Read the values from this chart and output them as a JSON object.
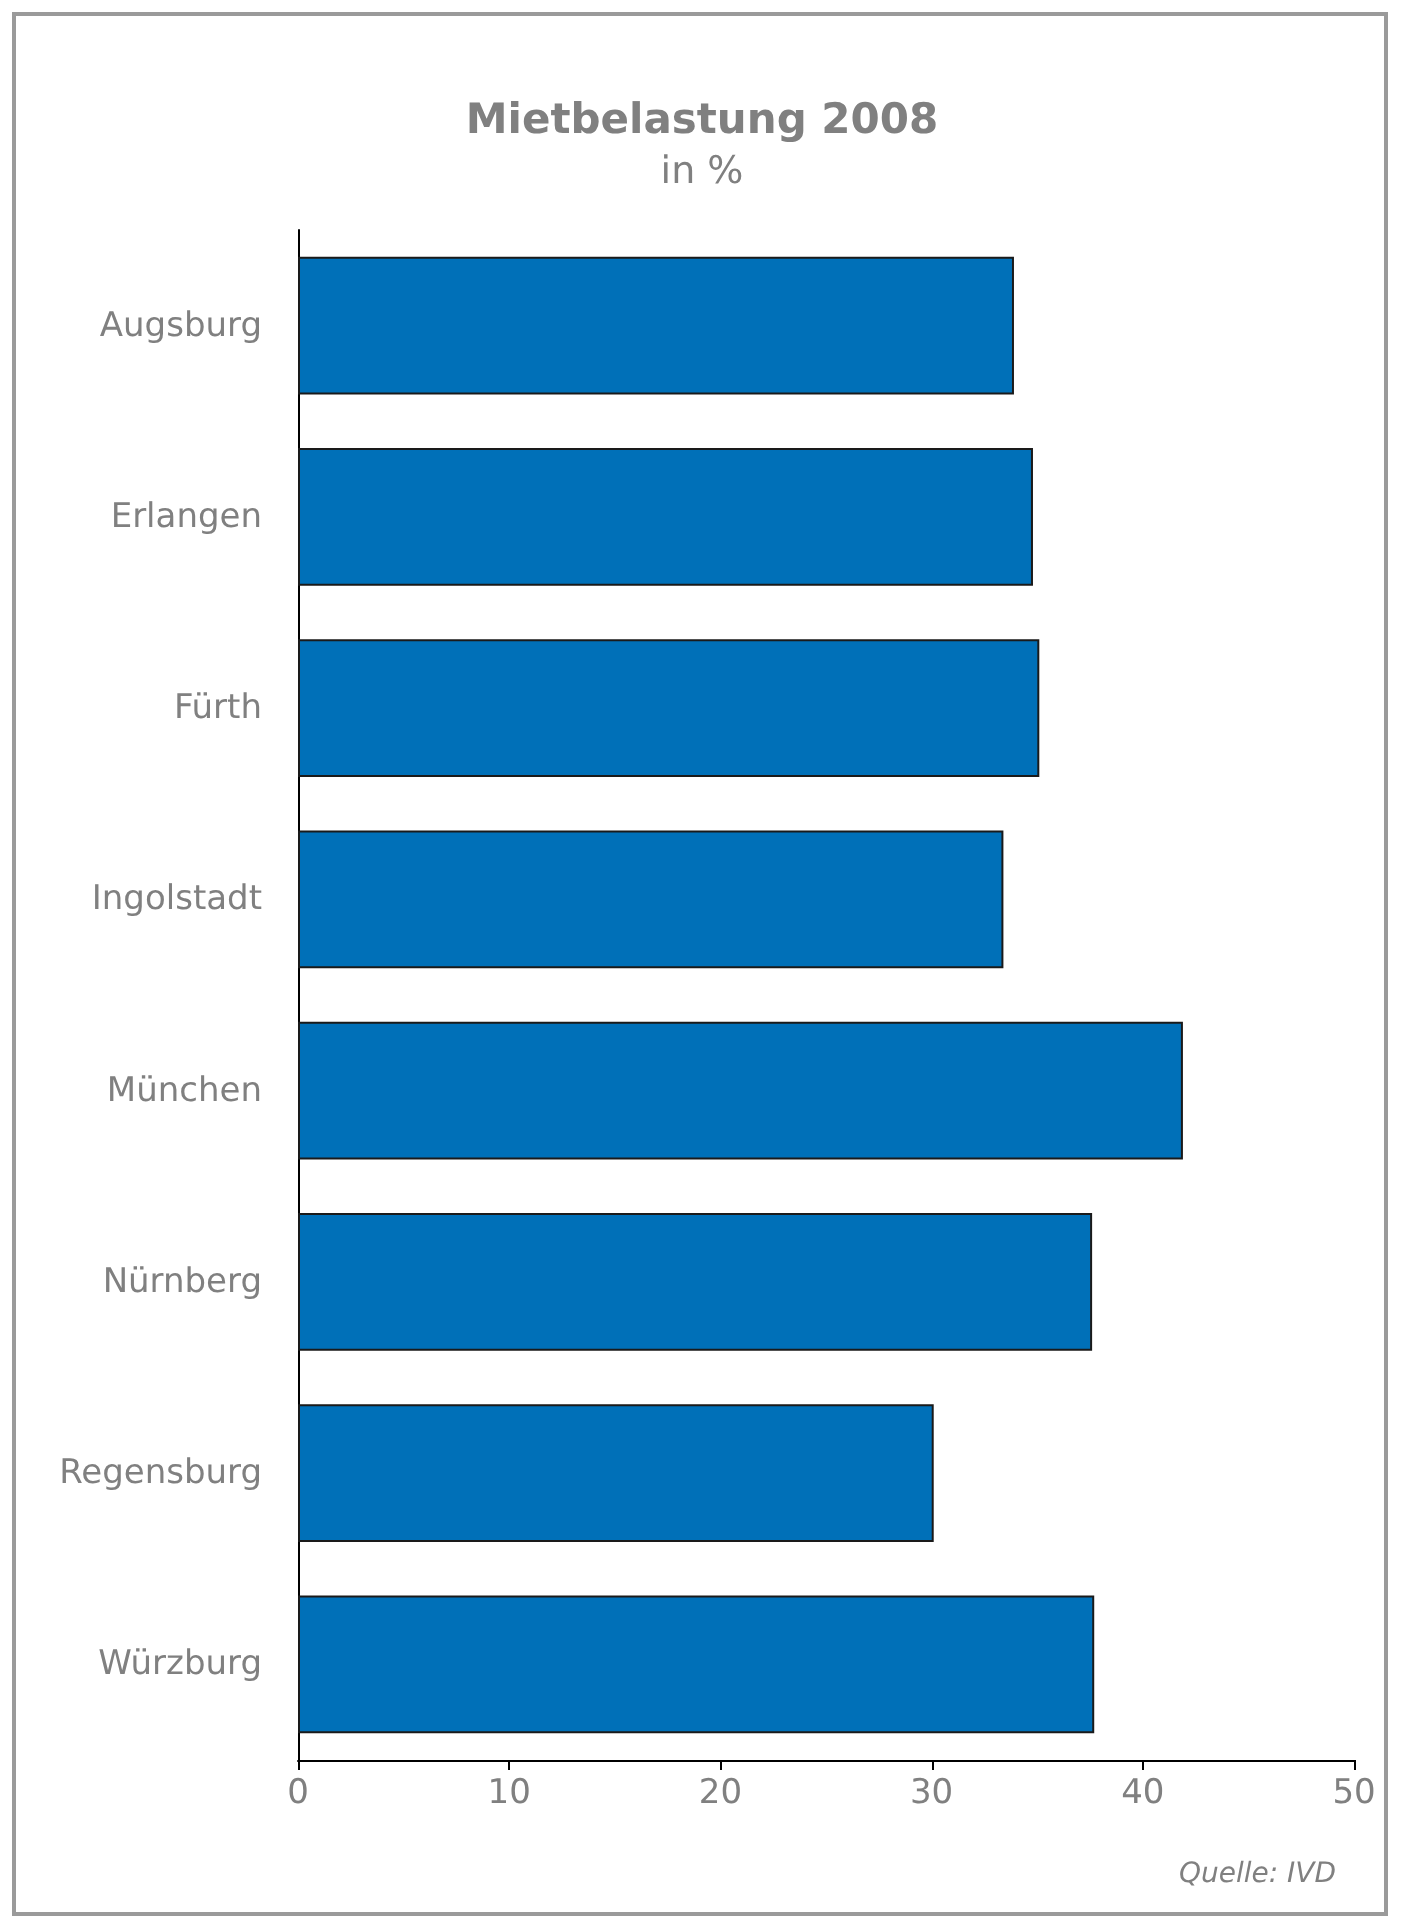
{
  "chart_data": {
    "type": "bar",
    "orientation": "horizontal",
    "title": "Mietbelastung 2008",
    "subtitle": "in %",
    "categories": [
      "Augsburg",
      "Erlangen",
      "Fürth",
      "Ingolstadt",
      "München",
      "Nürnberg",
      "Regensburg",
      "Würzburg"
    ],
    "values": [
      33.9,
      34.8,
      35.1,
      33.4,
      41.9,
      37.6,
      30.1,
      37.7
    ],
    "color": "#0070b8",
    "xlim": [
      0,
      50
    ],
    "xticks": [
      0,
      10,
      20,
      30,
      40,
      50
    ],
    "annotations": [
      "Quelle: IVD"
    ]
  }
}
